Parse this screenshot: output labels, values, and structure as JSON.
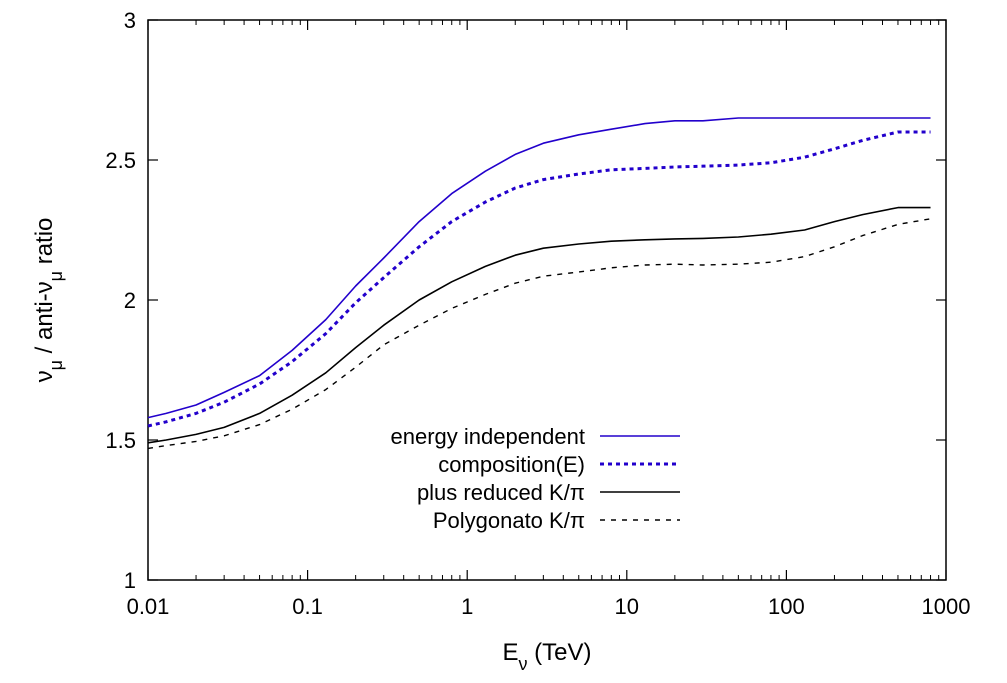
{
  "chart_data": {
    "type": "line",
    "xscale": "log",
    "xlim": [
      0.01,
      1000
    ],
    "ylim": [
      1,
      3
    ],
    "xticks": [
      0.01,
      0.1,
      1,
      10,
      100,
      1000
    ],
    "xtick_labels": [
      "0.01",
      "0.1",
      "1",
      "10",
      "100",
      "1000"
    ],
    "yticks": [
      1,
      1.5,
      2,
      2.5,
      3
    ],
    "ytick_labels": [
      "1",
      "1.5",
      "2",
      "2.5",
      "3"
    ],
    "xlabel": {
      "main": "E",
      "sub": "ν",
      "rest": " (TeV)"
    },
    "ylabel": {
      "p1": "ν",
      "s1": "μ",
      "p2": " / anti-ν",
      "s2": "μ",
      "p3": " ratio"
    },
    "grid": false,
    "legend_position": "center",
    "series": [
      {
        "name": "energy independent",
        "color": "#2200cc",
        "style": "solid",
        "x": [
          0.01,
          0.013,
          0.02,
          0.03,
          0.05,
          0.08,
          0.13,
          0.2,
          0.3,
          0.5,
          0.8,
          1.3,
          2,
          3,
          5,
          8,
          13,
          20,
          30,
          50,
          80,
          130,
          200,
          300,
          500,
          800
        ],
        "y": [
          1.58,
          1.595,
          1.625,
          1.67,
          1.73,
          1.82,
          1.93,
          2.05,
          2.15,
          2.28,
          2.38,
          2.46,
          2.52,
          2.56,
          2.59,
          2.61,
          2.63,
          2.64,
          2.64,
          2.65,
          2.65,
          2.65,
          2.65,
          2.65,
          2.65,
          2.65
        ]
      },
      {
        "name": "composition(E)",
        "color": "#2200cc",
        "style": "dotted",
        "x": [
          0.01,
          0.013,
          0.02,
          0.03,
          0.05,
          0.08,
          0.13,
          0.2,
          0.3,
          0.5,
          0.8,
          1.3,
          2,
          3,
          5,
          8,
          13,
          20,
          30,
          50,
          80,
          130,
          200,
          300,
          500,
          800
        ],
        "y": [
          1.55,
          1.565,
          1.595,
          1.635,
          1.7,
          1.78,
          1.88,
          1.99,
          2.08,
          2.19,
          2.28,
          2.35,
          2.4,
          2.43,
          2.45,
          2.465,
          2.47,
          2.475,
          2.478,
          2.482,
          2.49,
          2.51,
          2.54,
          2.57,
          2.6,
          2.6
        ]
      },
      {
        "name": "plus reduced K/π",
        "color": "#000000",
        "style": "solid",
        "x": [
          0.01,
          0.013,
          0.02,
          0.03,
          0.05,
          0.08,
          0.13,
          0.2,
          0.3,
          0.5,
          0.8,
          1.3,
          2,
          3,
          5,
          8,
          13,
          20,
          30,
          50,
          80,
          130,
          200,
          300,
          500,
          800
        ],
        "y": [
          1.49,
          1.5,
          1.52,
          1.545,
          1.595,
          1.66,
          1.74,
          1.83,
          1.91,
          2.0,
          2.065,
          2.12,
          2.16,
          2.185,
          2.2,
          2.21,
          2.215,
          2.218,
          2.22,
          2.225,
          2.235,
          2.25,
          2.28,
          2.305,
          2.33,
          2.33
        ]
      },
      {
        "name": "Polygonato K/π",
        "color": "#000000",
        "style": "dashed",
        "x": [
          0.01,
          0.013,
          0.02,
          0.03,
          0.05,
          0.08,
          0.13,
          0.2,
          0.3,
          0.5,
          0.8,
          1.3,
          2,
          3,
          5,
          8,
          13,
          20,
          30,
          50,
          80,
          130,
          200,
          300,
          500,
          800
        ],
        "y": [
          1.47,
          1.48,
          1.495,
          1.515,
          1.555,
          1.61,
          1.68,
          1.76,
          1.84,
          1.91,
          1.97,
          2.02,
          2.06,
          2.085,
          2.1,
          2.115,
          2.125,
          2.128,
          2.125,
          2.128,
          2.135,
          2.155,
          2.19,
          2.23,
          2.27,
          2.29
        ]
      }
    ]
  }
}
